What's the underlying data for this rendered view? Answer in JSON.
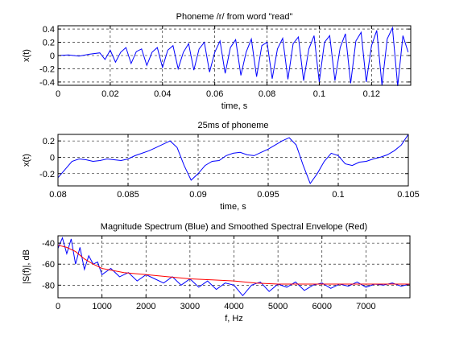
{
  "chart_data": [
    {
      "type": "line",
      "title": "Phoneme /r/ from word \"read\"",
      "xlabel": "time, s",
      "ylabel": "x(t)",
      "xlim": [
        0,
        0.135
      ],
      "ylim": [
        -0.45,
        0.45
      ],
      "xticks": [
        0,
        0.02,
        0.04,
        0.06,
        0.08,
        0.1,
        0.12
      ],
      "xtick_labels": [
        "0",
        "0.02",
        "0.04",
        "0.06",
        "0.08",
        "0.1",
        "0.12"
      ],
      "yticks": [
        -0.4,
        -0.2,
        0,
        0.2,
        0.4
      ],
      "ytick_labels": [
        "-0.4",
        "-0.2",
        "0",
        "0.2",
        "0.4"
      ],
      "grid": true,
      "series": [
        {
          "color": "#0000ff",
          "x": [
            0,
            0.004,
            0.008,
            0.012,
            0.016,
            0.018,
            0.02,
            0.022,
            0.024,
            0.026,
            0.028,
            0.03,
            0.032,
            0.034,
            0.036,
            0.038,
            0.04,
            0.042,
            0.044,
            0.046,
            0.048,
            0.05,
            0.052,
            0.054,
            0.056,
            0.058,
            0.06,
            0.062,
            0.064,
            0.066,
            0.068,
            0.07,
            0.072,
            0.074,
            0.076,
            0.078,
            0.08,
            0.082,
            0.084,
            0.086,
            0.088,
            0.09,
            0.092,
            0.094,
            0.096,
            0.098,
            0.1,
            0.102,
            0.104,
            0.106,
            0.108,
            0.11,
            0.112,
            0.114,
            0.116,
            0.118,
            0.12,
            0.122,
            0.124,
            0.126,
            0.128,
            0.13,
            0.132,
            0.134
          ],
          "y": [
            0,
            0.01,
            -0.01,
            0.02,
            0.04,
            -0.06,
            0.08,
            -0.1,
            0.05,
            0.12,
            -0.12,
            0.06,
            0.1,
            -0.15,
            0.05,
            0.12,
            -0.18,
            0.08,
            0.15,
            -0.2,
            0.05,
            0.18,
            -0.22,
            0.1,
            0.2,
            -0.25,
            0.05,
            0.22,
            -0.27,
            0.12,
            0.24,
            -0.3,
            0.05,
            0.25,
            -0.32,
            0.15,
            0.2,
            -0.35,
            0.1,
            0.26,
            -0.36,
            0.18,
            0.28,
            -0.38,
            0.1,
            0.3,
            -0.4,
            0.2,
            0.3,
            -0.38,
            0.12,
            0.33,
            -0.42,
            0.22,
            0.35,
            -0.4,
            0.15,
            0.38,
            -0.45,
            0.25,
            0.42,
            -0.46,
            0.3,
            0.05
          ]
        }
      ]
    },
    {
      "type": "line",
      "title": "25ms of phoneme",
      "xlabel": "time, s",
      "ylabel": "x(t)",
      "xlim": [
        0.08,
        0.105
      ],
      "ylim": [
        -0.35,
        0.28
      ],
      "xticks": [
        0.08,
        0.085,
        0.09,
        0.095,
        0.1,
        0.105
      ],
      "xtick_labels": [
        "0.08",
        "0.085",
        "0.09",
        "0.095",
        "0.1",
        "0.105"
      ],
      "yticks": [
        -0.2,
        0,
        0.2
      ],
      "ytick_labels": [
        "-0.2",
        "0",
        "0.2"
      ],
      "grid": true,
      "series": [
        {
          "color": "#0000ff",
          "x": [
            0.08,
            0.0805,
            0.081,
            0.0815,
            0.082,
            0.0825,
            0.083,
            0.0835,
            0.084,
            0.0845,
            0.085,
            0.0855,
            0.086,
            0.0865,
            0.087,
            0.0875,
            0.088,
            0.0885,
            0.089,
            0.0895,
            0.09,
            0.0905,
            0.091,
            0.0915,
            0.092,
            0.0925,
            0.093,
            0.0935,
            0.094,
            0.0945,
            0.095,
            0.0955,
            0.096,
            0.0965,
            0.097,
            0.0975,
            0.098,
            0.0985,
            0.099,
            0.0995,
            0.1,
            0.1005,
            0.101,
            0.1015,
            0.102,
            0.1025,
            0.103,
            0.1035,
            0.104,
            0.1045,
            0.105
          ],
          "y": [
            -0.25,
            -0.15,
            -0.05,
            -0.02,
            -0.03,
            -0.05,
            -0.04,
            -0.02,
            -0.03,
            -0.04,
            -0.02,
            0.02,
            0.05,
            0.08,
            0.12,
            0.16,
            0.2,
            0.12,
            -0.1,
            -0.28,
            -0.2,
            -0.1,
            -0.05,
            -0.04,
            0.02,
            0.05,
            0.06,
            0.03,
            0.02,
            0.06,
            0.1,
            0.15,
            0.2,
            0.24,
            0.15,
            -0.1,
            -0.32,
            -0.2,
            -0.05,
            0.05,
            0.02,
            -0.08,
            -0.1,
            -0.06,
            -0.05,
            -0.02,
            0.0,
            0.03,
            0.08,
            0.15,
            0.28
          ]
        }
      ]
    },
    {
      "type": "line",
      "title": "Magnitude Spectrum (Blue) and Smoothed Spectral Envelope (Red)",
      "xlabel": "f, Hz",
      "ylabel": "|S(f)|, dB",
      "xlim": [
        0,
        8000
      ],
      "ylim": [
        -92,
        -33
      ],
      "xticks": [
        0,
        1000,
        2000,
        3000,
        4000,
        5000,
        6000,
        7000
      ],
      "xtick_labels": [
        "0",
        "1000",
        "2000",
        "3000",
        "4000",
        "5000",
        "6000",
        "7000"
      ],
      "yticks": [
        -80,
        -60,
        -40
      ],
      "ytick_labels": [
        "-80",
        "-60",
        "-40"
      ],
      "grid": true,
      "series": [
        {
          "color": "#0000ff",
          "x": [
            0,
            100,
            200,
            300,
            400,
            500,
            600,
            700,
            800,
            900,
            1000,
            1200,
            1400,
            1600,
            1800,
            2000,
            2200,
            2400,
            2600,
            2800,
            3000,
            3200,
            3400,
            3600,
            3800,
            4000,
            4200,
            4400,
            4600,
            4800,
            5000,
            5200,
            5400,
            5600,
            5800,
            6000,
            6200,
            6400,
            6600,
            6800,
            7000,
            7200,
            7400,
            7600,
            7800,
            8000
          ],
          "y": [
            -45,
            -35,
            -50,
            -36,
            -60,
            -44,
            -65,
            -52,
            -60,
            -58,
            -70,
            -64,
            -72,
            -68,
            -76,
            -70,
            -74,
            -78,
            -72,
            -80,
            -74,
            -82,
            -76,
            -84,
            -78,
            -80,
            -90,
            -80,
            -77,
            -86,
            -79,
            -82,
            -77,
            -85,
            -80,
            -78,
            -83,
            -79,
            -81,
            -77,
            -82,
            -79,
            -80,
            -78,
            -81,
            -79
          ]
        },
        {
          "color": "#ff0000",
          "x": [
            0,
            200,
            400,
            600,
            800,
            1000,
            1500,
            2000,
            2500,
            3000,
            3500,
            4000,
            4500,
            5000,
            5500,
            6000,
            6500,
            7000,
            7500,
            8000
          ],
          "y": [
            -42,
            -44,
            -48,
            -55,
            -60,
            -64,
            -68,
            -70,
            -72,
            -74,
            -75,
            -76,
            -78,
            -79,
            -79,
            -79,
            -79,
            -79,
            -79,
            -79
          ]
        }
      ]
    }
  ]
}
